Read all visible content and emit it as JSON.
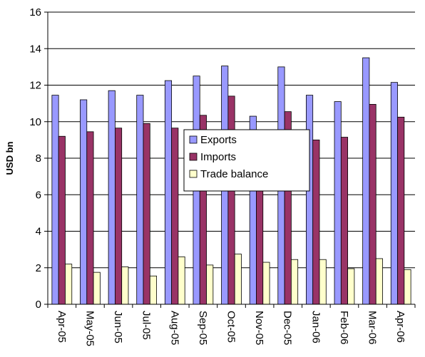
{
  "chart_data": {
    "type": "bar",
    "title": "",
    "xlabel": "",
    "ylabel": "USD bn",
    "ylim": [
      0,
      16
    ],
    "yticks": [
      0,
      2,
      4,
      6,
      8,
      10,
      12,
      14,
      16
    ],
    "grid": true,
    "legend_position": "center",
    "categories": [
      "Apr-05",
      "May-05",
      "Jun-05",
      "Jul-05",
      "Aug-05",
      "Sep-05",
      "Oct-05",
      "Nov-05",
      "Dec-05",
      "Jan-06",
      "Feb-06",
      "Mar-06",
      "Apr-06"
    ],
    "series": [
      {
        "name": "Exports",
        "color": "#9999ff",
        "values": [
          11.45,
          11.2,
          11.7,
          11.45,
          12.25,
          12.5,
          13.05,
          10.3,
          13.0,
          11.45,
          11.1,
          13.5,
          12.15
        ]
      },
      {
        "name": "Imports",
        "color": "#993366",
        "values": [
          9.2,
          9.45,
          9.65,
          9.9,
          9.65,
          10.35,
          11.4,
          8.0,
          10.55,
          9.0,
          9.15,
          10.95,
          10.25
        ]
      },
      {
        "name": "Trade balance",
        "color": "#ffffcc",
        "values": [
          2.2,
          1.75,
          2.05,
          1.55,
          2.6,
          2.15,
          2.75,
          2.3,
          2.45,
          2.45,
          1.95,
          2.5,
          1.9
        ]
      }
    ]
  }
}
